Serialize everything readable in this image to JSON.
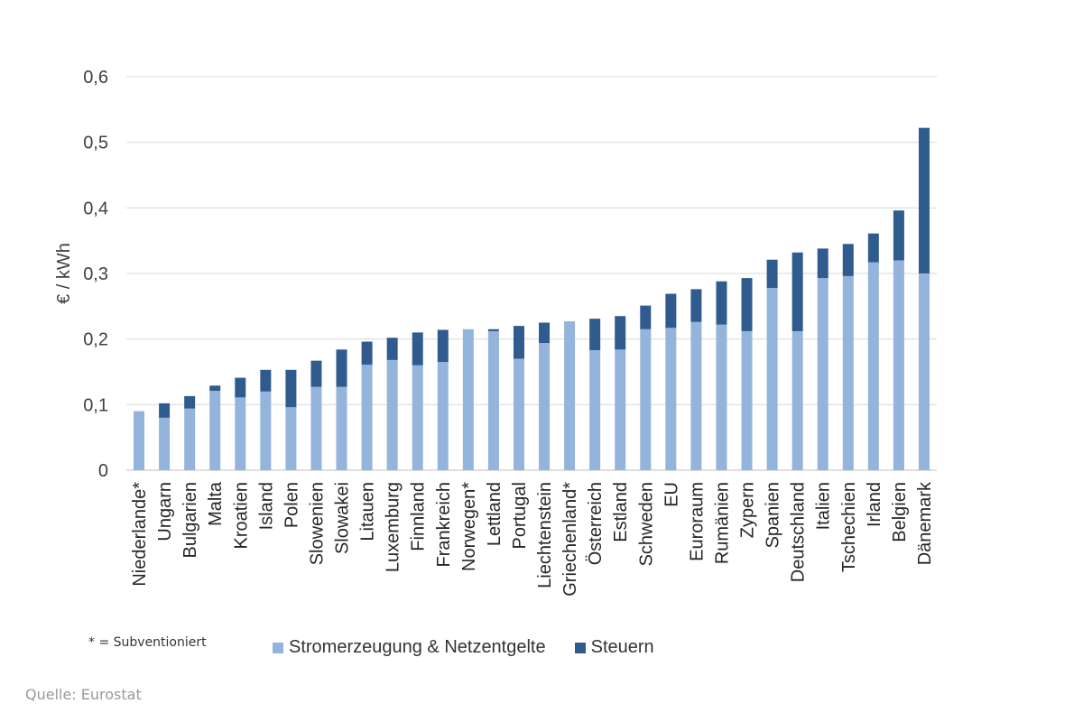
{
  "chart_data": {
    "type": "bar",
    "stacked": true,
    "title": "",
    "xlabel": "",
    "ylabel": "€ / kWh",
    "ylim": [
      0,
      0.6
    ],
    "yticks": [
      "0",
      "0,1",
      "0,2",
      "0,3",
      "0,4",
      "0,5",
      "0,6"
    ],
    "grid": true,
    "legend_position": "bottom",
    "categories": [
      "Niederlande*",
      "Ungarn",
      "Bulgarien",
      "Malta",
      "Kroatien",
      "Island",
      "Polen",
      "Slowenien",
      "Slowakei",
      "Litauen",
      "Luxemburg",
      "Finnland",
      "Frankreich",
      "Norwegen*",
      "Lettland",
      "Portugal",
      "Liechtenstein",
      "Griechenland*",
      "Österreich",
      "Estland",
      "Schweden",
      "EU",
      "Euroraum",
      "Rumänien",
      "Zypern",
      "Spanien",
      "Deutschland",
      "Italien",
      "Tschechien",
      "Irland",
      "Belgien",
      "Dänemark"
    ],
    "series": [
      {
        "name": "Stromerzeugung & Netzentgelte",
        "color": "#94b4dc",
        "values": [
          0.09,
          0.08,
          0.094,
          0.121,
          0.111,
          0.12,
          0.096,
          0.127,
          0.127,
          0.161,
          0.168,
          0.16,
          0.165,
          0.215,
          0.212,
          0.17,
          0.194,
          0.227,
          0.183,
          0.184,
          0.215,
          0.217,
          0.226,
          0.222,
          0.212,
          0.278,
          0.212,
          0.293,
          0.296,
          0.317,
          0.32,
          0.3
        ]
      },
      {
        "name": "Steuern",
        "color": "#2f5b8e",
        "values": [
          0.0,
          0.022,
          0.019,
          0.008,
          0.03,
          0.033,
          0.057,
          0.04,
          0.057,
          0.035,
          0.034,
          0.05,
          0.049,
          0.0,
          0.003,
          0.05,
          0.031,
          0.0,
          0.048,
          0.051,
          0.036,
          0.052,
          0.05,
          0.066,
          0.081,
          0.043,
          0.12,
          0.045,
          0.049,
          0.044,
          0.076,
          0.222
        ]
      }
    ]
  },
  "note": "* = Subventioniert",
  "source": "Quelle: Eurostat"
}
